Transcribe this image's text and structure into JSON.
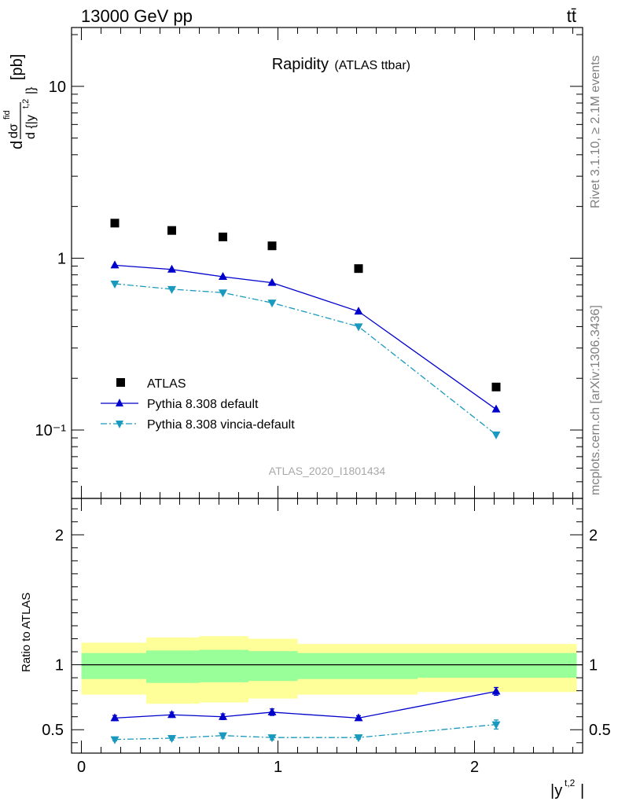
{
  "header": {
    "energy_label": "13000 GeV pp",
    "process_label": "tt̄"
  },
  "side_labels": {
    "rivet": "Rivet 3.1.10, ≥ 2.1M events",
    "source": "mcplots.cern.ch [arXiv:1306.3436]"
  },
  "watermark": "ATLAS_2020_I1801434",
  "chart_data": [
    {
      "type": "scatter",
      "title": "Rapidity",
      "subtitle": "(ATLAS ttbar)",
      "ylabel": "dσ^fid / d{|y^t,2|} [pb]",
      "yscale": "log",
      "ylim": [
        0.04,
        22
      ],
      "xlim": [
        -0.05,
        2.55
      ],
      "x": [
        0.17,
        0.46,
        0.72,
        0.97,
        1.41,
        2.11
      ],
      "y_tick_labels": [
        "10⁻¹",
        "1",
        "10"
      ],
      "legend_position": "bottom-left",
      "series": [
        {
          "name": "ATLAS",
          "values": [
            1.6,
            1.45,
            1.33,
            1.18,
            0.87,
            0.178
          ],
          "color": "#000000",
          "marker": "square"
        },
        {
          "name": "Pythia 8.308 default",
          "values": [
            0.91,
            0.86,
            0.78,
            0.72,
            0.49,
            0.132
          ],
          "color": "#0000cc",
          "marker": "triangle-up",
          "line": "solid"
        },
        {
          "name": "Pythia 8.308 vincia-default",
          "values": [
            0.71,
            0.66,
            0.63,
            0.55,
            0.4,
            0.094
          ],
          "color": "#1a99bf",
          "marker": "triangle-down",
          "line": "dashdot"
        }
      ]
    },
    {
      "type": "line",
      "ylabel": "Ratio to ATLAS",
      "xlabel": "|y^t,2|",
      "ylim": [
        0.32,
        2.28
      ],
      "xlim": [
        -0.05,
        2.55
      ],
      "x_tick_labels": [
        "0",
        "1",
        "2"
      ],
      "y_tick_labels": [
        "0.5",
        "1",
        "2"
      ],
      "bands": {
        "edges": [
          0.0,
          0.33,
          0.6,
          0.85,
          1.1,
          1.71,
          2.52
        ],
        "yellow_lo": [
          0.77,
          0.7,
          0.71,
          0.74,
          0.77,
          0.79,
          0.79
        ],
        "yellow_hi": [
          1.17,
          1.21,
          1.22,
          1.2,
          1.16,
          1.16,
          1.15
        ],
        "green_lo": [
          0.89,
          0.86,
          0.865,
          0.875,
          0.89,
          0.9,
          0.9
        ],
        "green_hi": [
          1.09,
          1.11,
          1.115,
          1.105,
          1.09,
          1.09,
          1.085
        ]
      },
      "series": [
        {
          "name": "Pythia 8.308 default",
          "values": [
            0.59,
            0.615,
            0.6,
            0.635,
            0.59,
            0.795
          ],
          "errors": [
            0.02,
            0.02,
            0.022,
            0.025,
            0.018,
            0.03
          ],
          "color": "#0000cc",
          "marker": "triangle-up"
        },
        {
          "name": "Pythia 8.308 vincia-default",
          "values": [
            0.425,
            0.435,
            0.455,
            0.44,
            0.44,
            0.54
          ],
          "errors": [
            0.01,
            0.015,
            0.02,
            0.018,
            0.012,
            0.035
          ],
          "color": "#1a99bf",
          "marker": "triangle-down"
        }
      ]
    }
  ]
}
